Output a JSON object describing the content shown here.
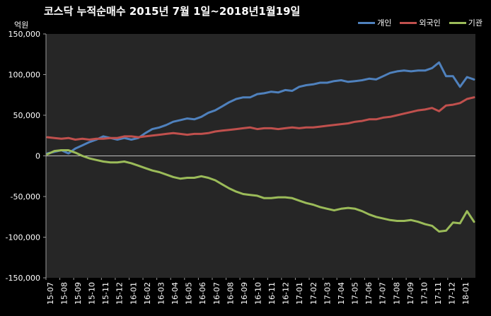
{
  "chart_data": {
    "type": "line",
    "title": "코스닥 누적순매수 2015년 7월 1일~2018년1월19일",
    "yunit": "억원",
    "ylim": [
      -150000,
      150000
    ],
    "yticks": [
      -150000,
      -100000,
      -50000,
      0,
      50000,
      100000,
      150000
    ],
    "ytick_labels": [
      "-150,000",
      "-100,000",
      "-50,000",
      "0",
      "50,000",
      "100,000",
      "150,000"
    ],
    "grid": false,
    "legend": "top-right",
    "x_labels": [
      "15-07",
      "15-08",
      "15-09",
      "15-10",
      "15-11",
      "15-12",
      "16-01",
      "16-02",
      "16-03",
      "16-04",
      "16-05",
      "16-06",
      "16-07",
      "16-08",
      "16-09",
      "16-10",
      "16-11",
      "16-12",
      "17-01",
      "17-02",
      "17-03",
      "17-04",
      "17-05",
      "17-06",
      "17-07",
      "17-08",
      "17-09",
      "17-10",
      "17-11",
      "17-12",
      "18-01"
    ],
    "x": [
      "15-07",
      "15-07b",
      "15-08",
      "15-08b",
      "15-09",
      "15-09b",
      "15-10",
      "15-10b",
      "15-11",
      "15-11b",
      "15-12",
      "15-12b",
      "16-01",
      "16-01b",
      "16-02",
      "16-02b",
      "16-03",
      "16-03b",
      "16-04",
      "16-04b",
      "16-05",
      "16-05b",
      "16-06",
      "16-06b",
      "16-07",
      "16-07b",
      "16-08",
      "16-08b",
      "16-09",
      "16-09b",
      "16-10",
      "16-10b",
      "16-11",
      "16-11b",
      "16-12",
      "16-12b",
      "17-01",
      "17-01b",
      "17-02",
      "17-02b",
      "17-03",
      "17-03b",
      "17-04",
      "17-04b",
      "17-05",
      "17-05b",
      "17-06",
      "17-06b",
      "17-07",
      "17-07b",
      "17-08",
      "17-08b",
      "17-09",
      "17-09b",
      "17-10",
      "17-10b",
      "17-11",
      "17-11b",
      "17-12",
      "17-12b",
      "18-01",
      "18-01b"
    ],
    "series": [
      {
        "name": "개인",
        "color": "#4f81bd",
        "values": [
          3000,
          5000,
          7000,
          3000,
          9000,
          13000,
          17000,
          20000,
          24000,
          22000,
          20000,
          22000,
          20000,
          22000,
          28000,
          33000,
          35000,
          38000,
          42000,
          44000,
          46000,
          45000,
          48000,
          53000,
          56000,
          61000,
          66000,
          70000,
          72000,
          72000,
          76000,
          77000,
          79000,
          78000,
          81000,
          80000,
          85000,
          87000,
          88000,
          90000,
          90000,
          92000,
          93000,
          91000,
          92000,
          93000,
          95000,
          94000,
          98000,
          102000,
          104000,
          105000,
          104000,
          105000,
          105000,
          108000,
          115000,
          98000,
          98000,
          85000,
          97000,
          94000
        ]
      },
      {
        "name": "외국인",
        "color": "#c0504d",
        "values": [
          23000,
          22000,
          21000,
          22000,
          20000,
          21000,
          20000,
          21000,
          21000,
          22000,
          22000,
          24000,
          24000,
          23000,
          24000,
          25000,
          26000,
          27000,
          28000,
          27000,
          26000,
          27000,
          27000,
          28000,
          30000,
          31000,
          32000,
          33000,
          34000,
          35000,
          33000,
          34000,
          34000,
          33000,
          34000,
          35000,
          34000,
          35000,
          35000,
          36000,
          37000,
          38000,
          39000,
          40000,
          42000,
          43000,
          45000,
          45000,
          47000,
          48000,
          50000,
          52000,
          54000,
          56000,
          57000,
          59000,
          55000,
          62000,
          63000,
          65000,
          70000,
          72000
        ]
      },
      {
        "name": "기관",
        "color": "#9bbb59",
        "values": [
          2000,
          6000,
          7000,
          7000,
          4000,
          0,
          -3000,
          -5000,
          -7000,
          -8000,
          -8000,
          -7000,
          -9000,
          -12000,
          -15000,
          -18000,
          -20000,
          -23000,
          -26000,
          -28000,
          -27000,
          -27000,
          -25000,
          -27000,
          -30000,
          -35000,
          -40000,
          -44000,
          -47000,
          -48000,
          -49000,
          -52000,
          -52000,
          -51000,
          -51000,
          -52000,
          -55000,
          -58000,
          -60000,
          -63000,
          -65000,
          -67000,
          -65000,
          -64000,
          -65000,
          -68000,
          -72000,
          -75000,
          -77000,
          -79000,
          -80000,
          -80000,
          -79000,
          -81000,
          -84000,
          -86000,
          -93000,
          -92000,
          -82000,
          -83000,
          -68000,
          -81000
        ]
      }
    ]
  }
}
